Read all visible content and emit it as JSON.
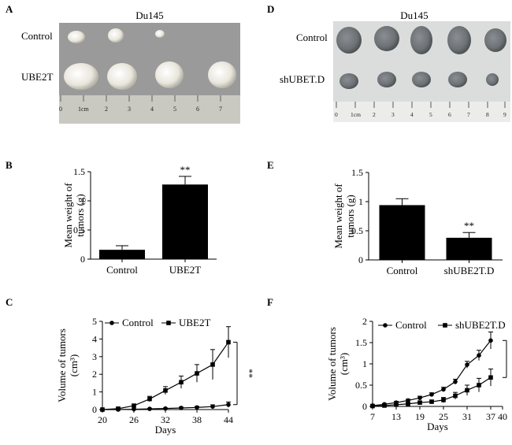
{
  "panels": {
    "A": {
      "letter": "A",
      "title": "Du145",
      "row_labels": [
        "Control",
        "UBE2T"
      ],
      "ruler_labels": [
        "0",
        "1cm",
        "2",
        "3",
        "4",
        "5",
        "6",
        "7"
      ]
    },
    "D": {
      "letter": "D",
      "title": "Du145",
      "row_labels": [
        "Control",
        "shUBET.D"
      ],
      "ruler_labels": [
        "0",
        "1cm",
        "2",
        "3",
        "4",
        "5",
        "6",
        "7",
        "8",
        "9"
      ]
    },
    "B": {
      "letter": "B"
    },
    "E": {
      "letter": "E"
    },
    "C": {
      "letter": "C"
    },
    "F": {
      "letter": "F"
    }
  },
  "chart_data": [
    {
      "id": "B",
      "type": "bar",
      "categories": [
        "Control",
        "UBE2T"
      ],
      "values": [
        0.16,
        1.28
      ],
      "errors": [
        0.07,
        0.14
      ],
      "ylabel": "Mean weight of tumors (g)",
      "ylim": [
        0,
        1.5
      ],
      "yticks": [
        "0",
        "0.5",
        "1",
        "1.5"
      ],
      "annotations": [
        "**"
      ],
      "colors": {
        "bar": "#000000"
      }
    },
    {
      "id": "E",
      "type": "bar",
      "categories": [
        "Control",
        "shUBE2T.D"
      ],
      "values": [
        0.94,
        0.38
      ],
      "errors": [
        0.11,
        0.09
      ],
      "ylabel": "Mean weight of tumors (g)",
      "ylim": [
        0,
        1.5
      ],
      "yticks": [
        "0",
        "0.5",
        "1",
        "1.5"
      ],
      "annotations": [
        "**"
      ],
      "colors": {
        "bar": "#000000"
      }
    },
    {
      "id": "C",
      "type": "line",
      "x": [
        20,
        23,
        26,
        29,
        32,
        35,
        38,
        41,
        44
      ],
      "series": [
        {
          "name": "Control",
          "marker": "circle",
          "values": [
            0,
            0,
            0.02,
            0.04,
            0.06,
            0.09,
            0.12,
            0.17,
            0.28
          ],
          "errors": [
            0,
            0,
            0.02,
            0.03,
            0.03,
            0.05,
            0.06,
            0.1,
            0.15
          ]
        },
        {
          "name": "UBE2T",
          "marker": "square",
          "values": [
            0,
            0.05,
            0.22,
            0.6,
            1.08,
            1.55,
            2.05,
            2.55,
            3.82
          ],
          "errors": [
            0,
            0.03,
            0.08,
            0.15,
            0.22,
            0.35,
            0.5,
            0.85,
            0.88
          ]
        }
      ],
      "xlabel": "Days",
      "ylabel": "Volume of tumors (cm³)",
      "xticks": [
        "20",
        "26",
        "32",
        "38",
        "44"
      ],
      "yticks": [
        "0",
        "1",
        "2",
        "3",
        "4",
        "5"
      ],
      "xlim": [
        20,
        44
      ],
      "ylim": [
        0,
        5
      ],
      "annotations": [
        "**"
      ],
      "legend": "top"
    },
    {
      "id": "F",
      "type": "line",
      "x": [
        7,
        10,
        13,
        16,
        19,
        22,
        25,
        28,
        31,
        34,
        37
      ],
      "series": [
        {
          "name": "Control",
          "marker": "circle",
          "values": [
            0.02,
            0.05,
            0.09,
            0.14,
            0.2,
            0.28,
            0.4,
            0.58,
            0.98,
            1.2,
            1.55
          ],
          "errors": [
            0.01,
            0.02,
            0.03,
            0.03,
            0.04,
            0.04,
            0.05,
            0.06,
            0.08,
            0.12,
            0.2
          ]
        },
        {
          "name": "shUBE2T.D",
          "marker": "square",
          "values": [
            0.01,
            0.02,
            0.04,
            0.06,
            0.09,
            0.11,
            0.15,
            0.25,
            0.38,
            0.5,
            0.68
          ],
          "errors": [
            0.01,
            0.01,
            0.02,
            0.02,
            0.03,
            0.04,
            0.06,
            0.08,
            0.12,
            0.16,
            0.2
          ]
        }
      ],
      "xlabel": "Days",
      "ylabel": "Volume of tumors (cm³)",
      "xticks": [
        "7",
        "13",
        "19",
        "25",
        "31",
        "37"
      ],
      "yticks": [
        "0",
        "0.5",
        "1",
        "1.5",
        "2"
      ],
      "xlim": [
        7,
        40
      ],
      "ylim": [
        0,
        2
      ],
      "annotations": [
        "**"
      ],
      "legend": "top",
      "x_extra_tick": "40"
    }
  ]
}
